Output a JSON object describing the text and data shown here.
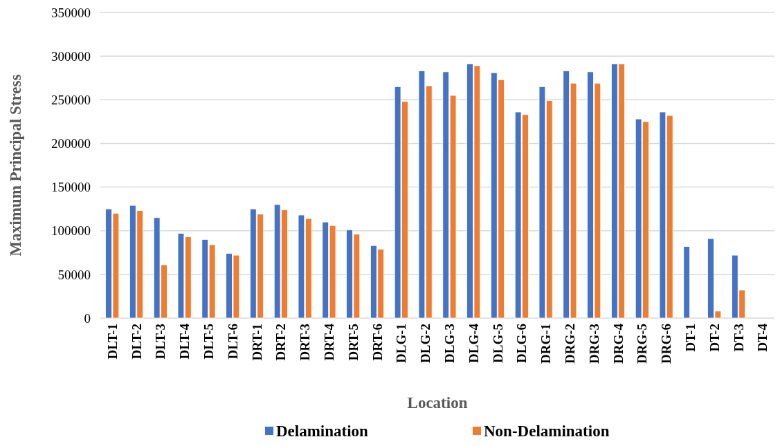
{
  "chart_data": {
    "type": "bar",
    "xlabel": "Location",
    "ylabel": "Maximum Principal Stress",
    "categories": [
      "DLT-1",
      "DLT-2",
      "DLT-3",
      "DLT-4",
      "DLT-5",
      "DLT-6",
      "DRT-1",
      "DRT-2",
      "DRT-3",
      "DRT-4",
      "DRT-5",
      "DRT-6",
      "DLG-1",
      "DLG-2",
      "DLG-3",
      "DLG-4",
      "DLG-5",
      "DLG-6",
      "DRG-1",
      "DRG-2",
      "DRG-3",
      "DRG-4",
      "DRG-5",
      "DRG-6",
      "DT-1",
      "DT-2",
      "DT-3",
      "DT-4"
    ],
    "series": [
      {
        "name": "Delamination",
        "color": "#4472c4",
        "values": [
          125000,
          129000,
          115000,
          97000,
          90000,
          74000,
          125000,
          130000,
          118000,
          110000,
          101000,
          83000,
          265000,
          283000,
          282000,
          291000,
          281000,
          236000,
          265000,
          283000,
          282000,
          291000,
          228000,
          236000,
          82000,
          91000,
          72000,
          0
        ]
      },
      {
        "name": "Non-Delamination",
        "color": "#ed7d31",
        "values": [
          120000,
          123000,
          61000,
          93000,
          84000,
          72000,
          119000,
          124000,
          114000,
          106000,
          96000,
          79000,
          248000,
          266000,
          255000,
          289000,
          273000,
          233000,
          249000,
          269000,
          269000,
          291000,
          225000,
          232000,
          0,
          8000,
          32000,
          0
        ]
      }
    ],
    "ylim": [
      0,
      350000
    ],
    "yticks": [
      0,
      50000,
      100000,
      150000,
      200000,
      250000,
      300000,
      350000
    ],
    "grid": "y",
    "legend": "bottom"
  }
}
